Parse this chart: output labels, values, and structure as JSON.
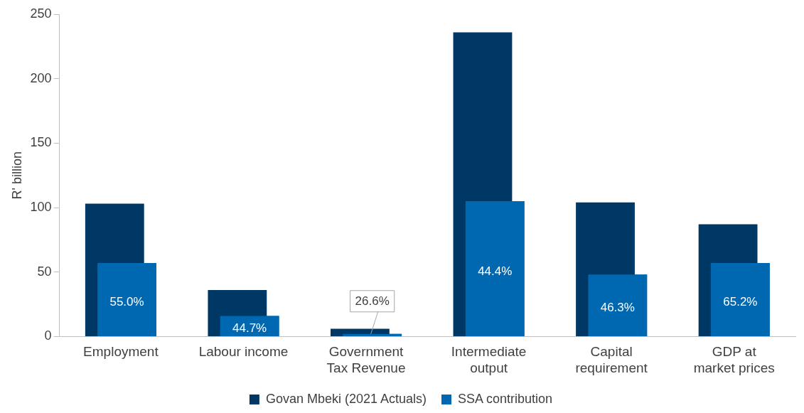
{
  "chart_data": {
    "type": "bar",
    "ylabel": "R' billion",
    "categories": [
      "Employment",
      "Labour income",
      "Government Tax Revenue",
      "Intermediate output",
      "Capital requirement",
      "GDP at market prices"
    ],
    "series": [
      {
        "name": "Govan Mbeki (2021 Actuals)",
        "color": "#003865",
        "values": [
          103,
          36,
          6,
          236,
          104,
          87
        ]
      },
      {
        "name": "SSA contribution",
        "color": "#0067b1",
        "values": [
          57,
          16,
          2,
          105,
          48,
          57
        ]
      }
    ],
    "annotations": [
      "55.0%",
      "44.7%",
      {
        "text": "26.6%",
        "x": "Government Tax Revenue",
        "y": 2
      },
      "44.4%",
      "46.3%",
      "65.2%"
    ],
    "ylim": [
      0,
      250
    ],
    "yticks": [
      0,
      50,
      100,
      150,
      200,
      250
    ],
    "grid": false,
    "legend": "bottom"
  }
}
